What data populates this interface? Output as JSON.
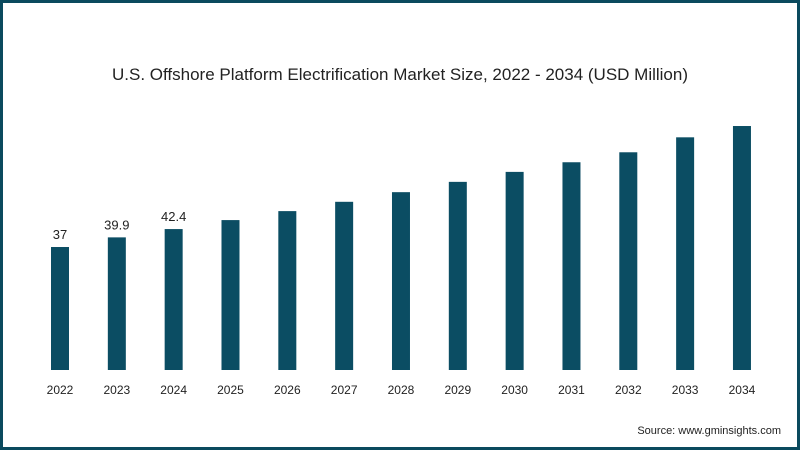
{
  "chart_data": {
    "type": "bar",
    "title": "U.S. Offshore Platform Electrification Market Size, 2022 - 2034 (USD Million)",
    "xlabel": "",
    "ylabel": "",
    "categories": [
      "2022",
      "2023",
      "2024",
      "2025",
      "2026",
      "2027",
      "2028",
      "2029",
      "2030",
      "2031",
      "2032",
      "2033",
      "2034"
    ],
    "values": [
      37,
      39.9,
      42.4,
      45.1,
      47.8,
      50.6,
      53.5,
      56.6,
      59.6,
      62.5,
      65.5,
      70.0,
      73.4
    ],
    "data_labels": [
      "37",
      "39.9",
      "42.4",
      "",
      "",
      "",
      "",
      "",
      "",
      "",
      "",
      "",
      ""
    ],
    "ylim": [
      0,
      80
    ],
    "grid": false,
    "bar_color": "#0b4d63"
  },
  "source": "Source: www.gminsights.com"
}
